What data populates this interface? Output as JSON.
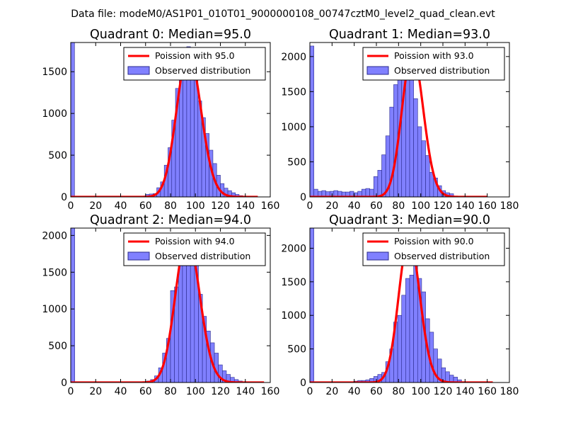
{
  "suptitle": "Data file: modeM0/AS1P01_010T01_9000000108_00747cztM0_level2_quad_clean.evt",
  "colors": {
    "hist_fill": "#8080ff",
    "hist_edge": "#2a2a8c",
    "fit_line": "#ff0000",
    "axis": "#000000"
  },
  "chart_data": [
    {
      "type": "bar",
      "title": "Quadrant 0: Median=95.0",
      "legend": {
        "line_label": "Poission with 95.0",
        "bar_label": "Observed distribution",
        "placement": "top-right"
      },
      "xlim": [
        0,
        160
      ],
      "ylim": [
        0,
        1850
      ],
      "xticks": [
        0,
        20,
        40,
        60,
        80,
        100,
        120,
        140,
        160
      ],
      "yticks": [
        0,
        500,
        1000,
        1500
      ],
      "bin_width": 3,
      "bin_start": 0,
      "counts": [
        1850,
        0,
        0,
        0,
        0,
        0,
        0,
        0,
        0,
        0,
        0,
        0,
        0,
        0,
        0,
        0,
        0,
        0,
        0,
        0,
        30,
        35,
        40,
        110,
        180,
        380,
        590,
        920,
        1300,
        1480,
        1720,
        1800,
        1690,
        1530,
        1150,
        950,
        760,
        560,
        400,
        260,
        160,
        105,
        75,
        50,
        30,
        15,
        10,
        0,
        0,
        0
      ],
      "poisson": {
        "mean": 95.0,
        "peak": 1730,
        "x_max": 150
      }
    },
    {
      "type": "bar",
      "title": "Quadrant 1: Median=93.0",
      "legend": {
        "line_label": "Poission with 93.0",
        "bar_label": "Observed distribution",
        "placement": "top-right"
      },
      "xlim": [
        0,
        180
      ],
      "ylim": [
        0,
        2200
      ],
      "xticks": [
        0,
        20,
        40,
        60,
        80,
        100,
        120,
        140,
        160,
        180
      ],
      "yticks": [
        0,
        500,
        1000,
        1500,
        2000
      ],
      "bin_width": 3.6,
      "bin_start": 0,
      "counts": [
        2150,
        110,
        80,
        90,
        75,
        80,
        90,
        80,
        70,
        70,
        80,
        60,
        80,
        110,
        120,
        110,
        290,
        380,
        600,
        870,
        1280,
        1600,
        1770,
        1970,
        2100,
        1780,
        1400,
        1000,
        800,
        590,
        350,
        270,
        160,
        90,
        60,
        45,
        0,
        0,
        0,
        0,
        0,
        0,
        0,
        0,
        0,
        0,
        0,
        0,
        0,
        0
      ],
      "poisson": {
        "mean": 93.0,
        "peak": 2050,
        "x_max": 160
      }
    },
    {
      "type": "bar",
      "title": "Quadrant 2: Median=94.0",
      "legend": {
        "line_label": "Poission with 94.0",
        "bar_label": "Observed distribution",
        "placement": "top-right"
      },
      "xlim": [
        0,
        160
      ],
      "ylim": [
        0,
        2100
      ],
      "xticks": [
        0,
        20,
        40,
        60,
        80,
        100,
        120,
        140,
        160
      ],
      "yticks": [
        0,
        500,
        1000,
        1500,
        2000
      ],
      "bin_width": 3.2,
      "bin_start": 0,
      "counts": [
        2100,
        0,
        0,
        0,
        0,
        0,
        0,
        0,
        0,
        0,
        0,
        0,
        0,
        0,
        0,
        0,
        0,
        0,
        0,
        20,
        40,
        90,
        200,
        400,
        600,
        1250,
        1300,
        1620,
        1950,
        2000,
        1850,
        1600,
        1200,
        900,
        700,
        540,
        400,
        240,
        160,
        110,
        70,
        40,
        20,
        0,
        0,
        0,
        0,
        0,
        0,
        0
      ],
      "poisson": {
        "mean": 94.0,
        "peak": 1980,
        "x_max": 155
      }
    },
    {
      "type": "bar",
      "title": "Quadrant 3: Median=90.0",
      "legend": {
        "line_label": "Poission with 90.0",
        "bar_label": "Observed distribution",
        "placement": "top-right"
      },
      "xlim": [
        0,
        180
      ],
      "ylim": [
        0,
        2300
      ],
      "xticks": [
        0,
        20,
        40,
        60,
        80,
        100,
        120,
        140,
        160,
        180
      ],
      "yticks": [
        0,
        500,
        1000,
        1500,
        2000
      ],
      "bin_width": 3.6,
      "bin_start": 0,
      "counts": [
        2300,
        0,
        0,
        0,
        0,
        0,
        0,
        0,
        0,
        0,
        0,
        20,
        30,
        30,
        40,
        60,
        90,
        120,
        150,
        310,
        500,
        900,
        1000,
        1300,
        1550,
        1600,
        2150,
        1550,
        1350,
        950,
        750,
        500,
        350,
        220,
        160,
        110,
        80,
        40,
        0,
        0,
        0,
        0,
        0,
        0,
        0,
        0,
        0,
        0,
        0,
        0
      ],
      "poisson": {
        "mean": 90.0,
        "peak": 2150,
        "x_max": 165
      }
    }
  ]
}
